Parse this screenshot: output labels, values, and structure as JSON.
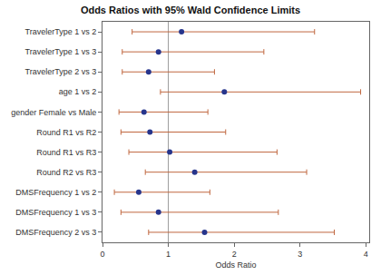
{
  "chart_data": {
    "type": "scatter",
    "title": "Odds Ratios with 95% Wald Confidence Limits",
    "x_label": "Odds Ratio",
    "categories": [
      "TravelerType 1 vs 2",
      "TravelerType 1 vs 3",
      "TravelerType 2 vs 3",
      "age 1 vs 2",
      "gender Female vs Male",
      "Round R1 vs R2",
      "Round R1 vs R3",
      "Round R2 vs R3",
      "DMSFrequency 1 vs 2",
      "DMSFrequency 1 vs 3",
      "DMSFrequency 2 vs 3"
    ],
    "values": [
      1.2,
      0.85,
      0.7,
      1.85,
      0.63,
      0.72,
      1.02,
      1.4,
      0.55,
      0.85,
      1.55
    ],
    "lower": [
      0.45,
      0.3,
      0.3,
      0.88,
      0.25,
      0.28,
      0.4,
      0.65,
      0.18,
      0.28,
      0.7
    ],
    "upper": [
      3.22,
      2.45,
      1.7,
      3.92,
      1.6,
      1.87,
      2.65,
      3.1,
      1.63,
      2.67,
      3.52
    ],
    "orientation": "horizontal",
    "color": "#27358c",
    "error_color": "#c0673f",
    "marker": "circle",
    "reference_x": 1,
    "xlim": [
      0,
      4.05
    ],
    "xticks": [
      0,
      1,
      2,
      3,
      4
    ],
    "grid": false
  }
}
